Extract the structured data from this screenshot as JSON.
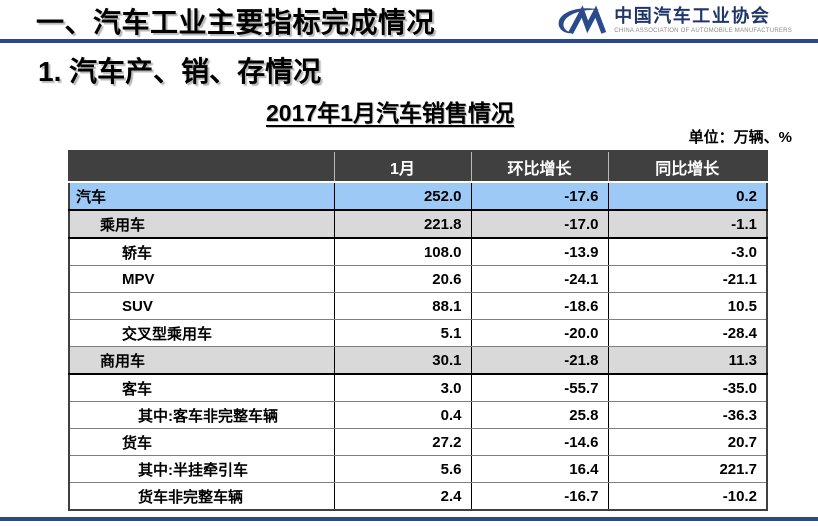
{
  "slide": {
    "header_title": "一、汽车工业主要指标完成情况",
    "section_title": "1. 汽车产、销、存情况",
    "logo": {
      "glyph": "caam-cm-monogram",
      "org_cn": "中国汽车工业协会",
      "org_en": "CHINA ASSOCIATION OF AUTOMOBILE MANUFACTURERS"
    },
    "colors": {
      "accent_rule": "#2A4A8C",
      "logo_navy": "#203669"
    }
  },
  "table": {
    "title": "2017年1月汽车销售情况",
    "unit_note": "单位：万辆、%",
    "columns": [
      "",
      "1月",
      "环比增长",
      "同比增长"
    ],
    "colors": {
      "header_bg": "#404040",
      "header_text": "#FFFFFF",
      "row_blue": "#9CC9F5",
      "row_gray": "#D9D9D9"
    },
    "rows": [
      {
        "label": "汽车",
        "indent": 0,
        "values": [
          "252.0",
          "-17.6",
          "0.2"
        ],
        "highlight": "blue",
        "strong_border": true
      },
      {
        "label": "乘用车",
        "indent": 1,
        "values": [
          "221.8",
          "-17.0",
          "-1.1"
        ],
        "highlight": "gray",
        "strong_border": true
      },
      {
        "label": "轿车",
        "indent": 2,
        "values": [
          "108.0",
          "-13.9",
          "-3.0"
        ],
        "highlight": "none",
        "strong_border": false
      },
      {
        "label": "MPV",
        "indent": 2,
        "values": [
          "20.6",
          "-24.1",
          "-21.1"
        ],
        "highlight": "none",
        "strong_border": false
      },
      {
        "label": "SUV",
        "indent": 2,
        "values": [
          "88.1",
          "-18.6",
          "10.5"
        ],
        "highlight": "none",
        "strong_border": false
      },
      {
        "label": "交叉型乘用车",
        "indent": 2,
        "values": [
          "5.1",
          "-20.0",
          "-28.4"
        ],
        "highlight": "none",
        "strong_border": false
      },
      {
        "label": "商用车",
        "indent": 1,
        "values": [
          "30.1",
          "-21.8",
          "11.3"
        ],
        "highlight": "gray",
        "strong_border": true
      },
      {
        "label": "客车",
        "indent": 2,
        "values": [
          "3.0",
          "-55.7",
          "-35.0"
        ],
        "highlight": "none",
        "strong_border": false
      },
      {
        "label": "其中:客车非完整车辆",
        "indent": 3,
        "values": [
          "0.4",
          "25.8",
          "-36.3"
        ],
        "highlight": "none",
        "strong_border": false
      },
      {
        "label": "货车",
        "indent": 2,
        "values": [
          "27.2",
          "-14.6",
          "20.7"
        ],
        "highlight": "none",
        "strong_border": false
      },
      {
        "label": "其中:半挂牵引车",
        "indent": 3,
        "values": [
          "5.6",
          "16.4",
          "221.7"
        ],
        "highlight": "none",
        "strong_border": false
      },
      {
        "label": "货车非完整车辆",
        "indent": 3,
        "values": [
          "2.4",
          "-16.7",
          "-10.2"
        ],
        "highlight": "none",
        "strong_border": false
      }
    ]
  }
}
